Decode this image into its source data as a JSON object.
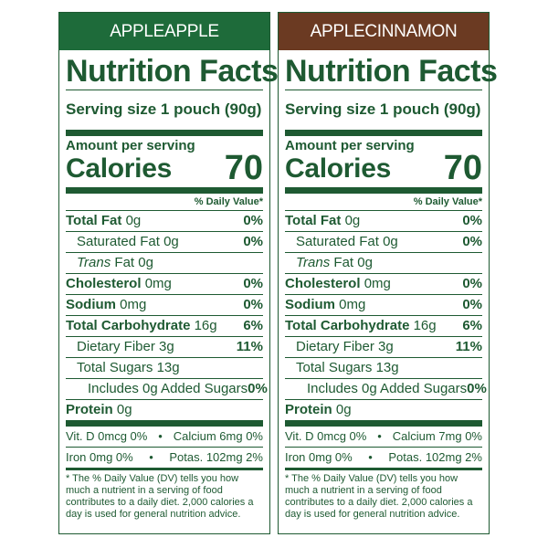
{
  "panels": [
    {
      "header": "APPLEAPPLE",
      "header_color": "#1e6b3a",
      "text_color": "#1e5a32",
      "title": "Nutrition Facts",
      "serving": "Serving size 1 pouch (90g)",
      "amount_per_serving": "Amount per serving",
      "calories_label": "Calories",
      "calories_value": "70",
      "daily_value_header": "% Daily Value*",
      "rows": {
        "total_fat": {
          "label": "Total Fat",
          "amount": "0g",
          "pct": "0%"
        },
        "saturated_fat": {
          "label": "Saturated Fat",
          "amount": "0g",
          "pct": "0%"
        },
        "trans_fat": {
          "label": "Trans",
          "label_rest": "Fat 0g"
        },
        "cholesterol": {
          "label": "Cholesterol",
          "amount": "0mg",
          "pct": "0%"
        },
        "sodium": {
          "label": "Sodium",
          "amount": "0mg",
          "pct": "0%"
        },
        "total_carb": {
          "label": "Total Carbohydrate",
          "amount": "16g",
          "pct": "6%"
        },
        "dietary_fiber": {
          "label": "Dietary Fiber",
          "amount": "3g",
          "pct": "11%"
        },
        "total_sugars": {
          "label": "Total Sugars",
          "amount": "13g"
        },
        "added_sugars": {
          "label": "Includes 0g Added Sugars",
          "pct": "0%"
        },
        "protein": {
          "label": "Protein",
          "amount": "0g"
        }
      },
      "vitamins": {
        "vit_d": "Vit. D 0mcg 0%",
        "calcium": "Calcium 6mg 0%",
        "iron": "Iron 0mg 0%",
        "potassium": "Potas. 102mg 2%",
        "separator": "•"
      },
      "footnote": "* The % Daily Value (DV) tells you how much a nutrient in a serving of food contributes to a daily diet. 2,000 calories a day is used for general nutrition advice."
    },
    {
      "header": "APPLECINNAMON",
      "header_color": "#6b3a22",
      "text_color": "#1e5a32",
      "title": "Nutrition Facts",
      "serving": "Serving size 1 pouch (90g)",
      "amount_per_serving": "Amount per serving",
      "calories_label": "Calories",
      "calories_value": "70",
      "daily_value_header": "% Daily Value*",
      "rows": {
        "total_fat": {
          "label": "Total Fat",
          "amount": "0g",
          "pct": "0%"
        },
        "saturated_fat": {
          "label": "Saturated Fat",
          "amount": "0g",
          "pct": "0%"
        },
        "trans_fat": {
          "label": "Trans",
          "label_rest": "Fat 0g"
        },
        "cholesterol": {
          "label": "Cholesterol",
          "amount": "0mg",
          "pct": "0%"
        },
        "sodium": {
          "label": "Sodium",
          "amount": "0mg",
          "pct": "0%"
        },
        "total_carb": {
          "label": "Total Carbohydrate",
          "amount": "16g",
          "pct": "6%"
        },
        "dietary_fiber": {
          "label": "Dietary Fiber",
          "amount": "3g",
          "pct": "11%"
        },
        "total_sugars": {
          "label": "Total Sugars",
          "amount": "13g"
        },
        "added_sugars": {
          "label": "Includes 0g Added Sugars",
          "pct": "0%"
        },
        "protein": {
          "label": "Protein",
          "amount": "0g"
        }
      },
      "vitamins": {
        "vit_d": "Vit. D 0mcg 0%",
        "calcium": "Calcium 7mg 0%",
        "iron": "Iron 0mg 0%",
        "potassium": "Potas. 102mg 2%",
        "separator": "•"
      },
      "footnote": "* The % Daily Value (DV) tells you how much a nutrient in a serving of food contributes to a daily diet. 2,000 calories a day is used for general nutrition advice."
    }
  ]
}
